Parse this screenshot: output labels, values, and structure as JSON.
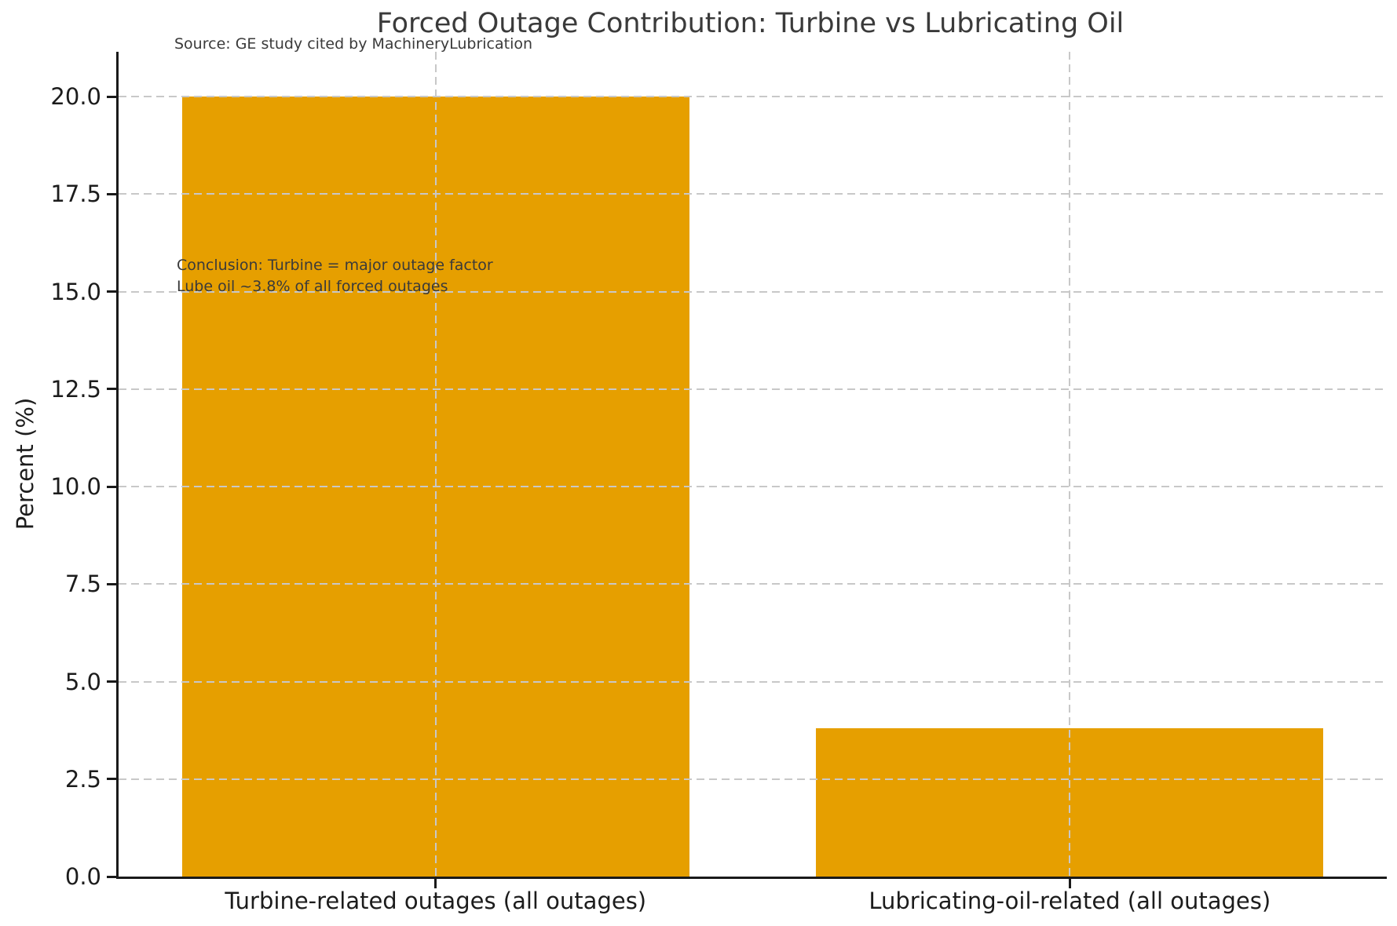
{
  "chart_data": {
    "type": "bar",
    "title": "Forced Outage Contribution: Turbine vs Lubricating Oil",
    "source_note": "Source: GE study cited by MachineryLubrication",
    "categories": [
      "Turbine-related outages (all outages)",
      "Lubricating-oil-related (all outages)"
    ],
    "values": [
      20.0,
      3.8
    ],
    "xlabel": "",
    "ylabel": "Percent (%)",
    "ylim": [
      0,
      21.15
    ],
    "yticks": [
      0.0,
      2.5,
      5.0,
      7.5,
      10.0,
      12.5,
      15.0,
      17.5,
      20.0
    ],
    "ytick_format_decimals": 1,
    "bar_color": "#E69F00",
    "bar_width_fraction": 0.8,
    "grid": "dashed, both axes, drawn above bars",
    "grid_color": "#c8c8c8",
    "spines": "left and bottom only",
    "legend_position": "none",
    "annotation_lines": [
      "Conclusion: Turbine = major outage factor",
      "Lube oil ~3.8% of all forced outages"
    ]
  }
}
